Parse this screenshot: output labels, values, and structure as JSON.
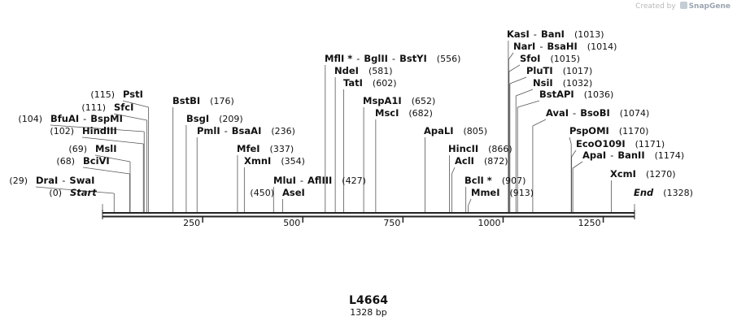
{
  "credit": {
    "prefix": "Created by",
    "brand": "SnapGene"
  },
  "plasmid": {
    "name": "L4664",
    "length_label": "1328 bp"
  },
  "chart_data": {
    "type": "linear-map",
    "total_bp": 1328,
    "ticks": [
      250,
      500,
      750,
      1000,
      1250
    ],
    "tick_labels": [
      "250",
      "500",
      "750",
      "1000",
      "1250"
    ],
    "features": [
      {
        "names": [
          "End"
        ],
        "pos": "(1328)",
        "bp": 1328,
        "italic": true
      },
      {
        "names": [
          "Start"
        ],
        "pos": "(0)",
        "bp": 0,
        "italic": true
      },
      {
        "names": [
          "DraI",
          "SwaI"
        ],
        "pos": "(29)",
        "bp": 29
      },
      {
        "names": [
          "BciVI"
        ],
        "pos": "(68)",
        "bp": 68
      },
      {
        "names": [
          "MslI"
        ],
        "pos": "(69)",
        "bp": 69
      },
      {
        "names": [
          "HindIII"
        ],
        "pos": "(102)",
        "bp": 102
      },
      {
        "names": [
          "BfuAI",
          "BspMI"
        ],
        "pos": "(104)",
        "bp": 104
      },
      {
        "names": [
          "SfcI"
        ],
        "pos": "(111)",
        "bp": 111
      },
      {
        "names": [
          "PstI"
        ],
        "pos": "(115)",
        "bp": 115
      },
      {
        "names": [
          "BstBI"
        ],
        "pos": "(176)",
        "bp": 176
      },
      {
        "names": [
          "BsgI"
        ],
        "pos": "(209)",
        "bp": 209
      },
      {
        "names": [
          "PmlI",
          "BsaAI"
        ],
        "pos": "(236)",
        "bp": 236
      },
      {
        "names": [
          "MfeI"
        ],
        "pos": "(337)",
        "bp": 337
      },
      {
        "names": [
          "XmnI"
        ],
        "pos": "(354)",
        "bp": 354
      },
      {
        "names": [
          "MluI",
          "AflIII"
        ],
        "pos": "(427)",
        "bp": 427
      },
      {
        "names": [
          "AseI"
        ],
        "pos": "(450)",
        "bp": 450
      },
      {
        "names": [
          "MflI *",
          "BglII",
          "BstYI"
        ],
        "pos": "(556)",
        "bp": 556
      },
      {
        "names": [
          "NdeI"
        ],
        "pos": "(581)",
        "bp": 581
      },
      {
        "names": [
          "TatI"
        ],
        "pos": "(602)",
        "bp": 602
      },
      {
        "names": [
          "MspA1I"
        ],
        "pos": "(652)",
        "bp": 652
      },
      {
        "names": [
          "MscI"
        ],
        "pos": "(682)",
        "bp": 682
      },
      {
        "names": [
          "ApaLI"
        ],
        "pos": "(805)",
        "bp": 805
      },
      {
        "names": [
          "HincII"
        ],
        "pos": "(866)",
        "bp": 866
      },
      {
        "names": [
          "AclI"
        ],
        "pos": "(872)",
        "bp": 872
      },
      {
        "names": [
          "BclI *"
        ],
        "pos": "(907)",
        "bp": 907
      },
      {
        "names": [
          "MmeI"
        ],
        "pos": "(913)",
        "bp": 913
      },
      {
        "names": [
          "KasI",
          "BanI"
        ],
        "pos": "(1013)",
        "bp": 1013
      },
      {
        "names": [
          "NarI",
          "BsaHI"
        ],
        "pos": "(1014)",
        "bp": 1014
      },
      {
        "names": [
          "SfoI"
        ],
        "pos": "(1015)",
        "bp": 1015
      },
      {
        "names": [
          "PluTI"
        ],
        "pos": "(1017)",
        "bp": 1017
      },
      {
        "names": [
          "NsiI"
        ],
        "pos": "(1032)",
        "bp": 1032
      },
      {
        "names": [
          "BstAPI"
        ],
        "pos": "(1036)",
        "bp": 1036
      },
      {
        "names": [
          "AvaI",
          "BsoBI"
        ],
        "pos": "(1074)",
        "bp": 1074
      },
      {
        "names": [
          "PspOMI"
        ],
        "pos": "(1170)",
        "bp": 1170
      },
      {
        "names": [
          "EcoO109I"
        ],
        "pos": "(1171)",
        "bp": 1171
      },
      {
        "names": [
          "ApaI",
          "BanII"
        ],
        "pos": "(1174)",
        "bp": 1174
      },
      {
        "names": [
          "XcmI"
        ],
        "pos": "(1270)",
        "bp": 1270
      }
    ]
  }
}
